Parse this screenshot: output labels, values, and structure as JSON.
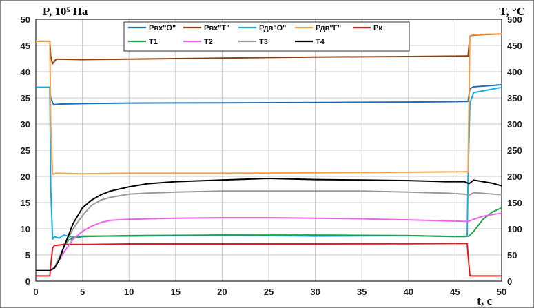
{
  "chart_data": {
    "type": "line",
    "ylabel_left": "P, 10⁵ Па",
    "ylabel_right": "T, °C",
    "xlabel": "t, c",
    "xlim": [
      0,
      50
    ],
    "ylim_left": [
      0,
      50
    ],
    "ylim_right": [
      0,
      500
    ],
    "grid": true,
    "legend_position": "top-center",
    "x_ticks": [
      "0",
      "5",
      "10",
      "15",
      "20",
      "25",
      "30",
      "35",
      "40",
      "45",
      "50"
    ],
    "y_ticks_left": [
      "0",
      "5",
      "10",
      "15",
      "20",
      "25",
      "30",
      "35",
      "40",
      "45",
      "50"
    ],
    "y_ticks_right": [
      "0",
      "50",
      "100",
      "150",
      "200",
      "250",
      "300",
      "350",
      "400",
      "450",
      "500"
    ],
    "series": [
      {
        "name": "Рвх\"О\"",
        "axis": "left",
        "color": "#1f6fb5",
        "x": [
          0,
          1.5,
          1.6,
          1.9,
          2.5,
          5,
          10,
          20,
          30,
          40,
          46.3,
          46.4,
          46.6,
          47,
          50
        ],
        "y": [
          37,
          37,
          35,
          33.7,
          33.8,
          33.9,
          34,
          34.05,
          34.1,
          34.2,
          34.3,
          34.3,
          36.8,
          37.1,
          37.5
        ]
      },
      {
        "name": "Рвх\"Т\"",
        "axis": "left",
        "color": "#8b4513",
        "x": [
          0,
          1.5,
          1.6,
          1.8,
          2.2,
          5,
          10,
          20,
          30,
          40,
          46.3,
          46.4,
          46.6,
          47,
          50
        ],
        "y": [
          45.8,
          45.8,
          43,
          41.5,
          42.4,
          42.3,
          42.4,
          42.6,
          42.8,
          42.9,
          43.0,
          43.0,
          46.8,
          47,
          47.2
        ]
      },
      {
        "name": "Рдв\"О\"",
        "axis": "left",
        "color": "#19a9e3",
        "x": [
          0,
          1.5,
          1.6,
          1.8,
          2.0,
          2.5,
          3,
          4,
          5,
          10,
          20,
          30,
          40,
          45,
          46.3,
          46.4,
          46.6,
          47,
          50
        ],
        "y": [
          37,
          37,
          18,
          8,
          8.5,
          8.2,
          8.8,
          8.4,
          8.6,
          8.6,
          8.8,
          8.6,
          8.7,
          8.5,
          8.6,
          20,
          34,
          36,
          37
        ]
      },
      {
        "name": "Рдв\"Г\"",
        "axis": "left",
        "color": "#f4a04a",
        "x": [
          0,
          1.5,
          1.6,
          1.8,
          2.2,
          5,
          10,
          20,
          30,
          40,
          46.3,
          46.4,
          46.6,
          47,
          50
        ],
        "y": [
          45.8,
          45.8,
          30,
          20.4,
          20.6,
          20.5,
          20.6,
          20.6,
          20.7,
          20.8,
          20.9,
          20.9,
          46.8,
          47.1,
          47.2
        ]
      },
      {
        "name": "Рк",
        "axis": "left",
        "color": "#e31a1c",
        "x": [
          0,
          1.5,
          1.6,
          1.8,
          2.0,
          2.5,
          3,
          5,
          10,
          20,
          30,
          40,
          46.3,
          46.4,
          46.6,
          50
        ],
        "y": [
          1,
          1,
          3,
          6.3,
          6.8,
          6.9,
          7,
          7,
          7.1,
          7.1,
          7.1,
          7.15,
          7.2,
          5,
          1,
          1
        ]
      },
      {
        "name": "T1",
        "axis": "right",
        "color": "#22a14a",
        "x": [
          0,
          1.5,
          2.0,
          2.5,
          3,
          3.5,
          4,
          5,
          7,
          10,
          20,
          30,
          40,
          46,
          46.5,
          47,
          48,
          49,
          50
        ],
        "y": [
          20,
          20,
          25,
          45,
          65,
          78,
          82,
          85,
          86,
          87,
          88,
          88,
          87,
          85,
          86,
          95,
          118,
          132,
          140
        ]
      },
      {
        "name": "T2",
        "axis": "right",
        "color": "#ee64e8",
        "x": [
          0,
          1.5,
          2,
          2.5,
          3,
          4,
          5,
          6,
          7,
          8,
          10,
          15,
          20,
          25,
          30,
          35,
          40,
          44,
          46.4,
          47,
          48,
          50
        ],
        "y": [
          20,
          20,
          26,
          40,
          55,
          80,
          95,
          105,
          112,
          116,
          118,
          120,
          121,
          121,
          120,
          119,
          117,
          115,
          114,
          118,
          124,
          130
        ]
      },
      {
        "name": "T3",
        "axis": "right",
        "color": "#999999",
        "x": [
          0,
          1.5,
          2,
          2.5,
          3,
          4,
          5,
          6,
          7,
          8,
          10,
          12,
          15,
          20,
          25,
          30,
          35,
          40,
          44,
          46,
          46.5,
          47,
          50
        ],
        "y": [
          20,
          20,
          25,
          45,
          65,
          100,
          125,
          145,
          155,
          160,
          166,
          168,
          170,
          172,
          172,
          172,
          172,
          170,
          168,
          166,
          164,
          169,
          165
        ]
      },
      {
        "name": "T4",
        "axis": "right",
        "color": "#000000",
        "x": [
          0,
          1.5,
          2,
          2.5,
          3,
          4,
          5,
          6,
          7,
          8,
          10,
          12,
          15,
          20,
          25,
          30,
          35,
          40,
          44,
          46,
          46.5,
          47,
          48,
          49,
          50
        ],
        "y": [
          20,
          20,
          25,
          40,
          65,
          110,
          140,
          155,
          165,
          172,
          180,
          186,
          190,
          193,
          196,
          194,
          193,
          192,
          190,
          190,
          186,
          193,
          190,
          187,
          182
        ]
      }
    ]
  }
}
